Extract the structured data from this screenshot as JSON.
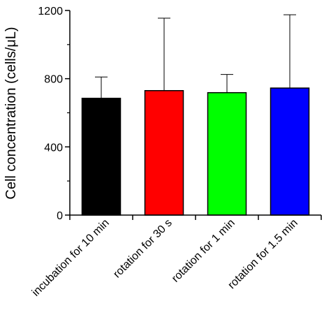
{
  "chart_data": {
    "type": "bar",
    "categories": [
      "incubation for 10 min",
      "rotation for 30 s",
      "rotation for 1 min",
      "rotation for 1.5 min"
    ],
    "values": [
      685,
      730,
      718,
      745
    ],
    "error_upper": [
      810,
      1155,
      825,
      1175
    ],
    "colors": [
      "#000000",
      "#ff0000",
      "#00ff00",
      "#0000ff"
    ],
    "ylabel": "Cell concentration (cells/μL)",
    "xlabel": "",
    "title": "",
    "ylim": [
      0,
      1200
    ],
    "yticks": [
      0,
      400,
      800,
      1200
    ],
    "grid": false,
    "legend": "none"
  }
}
